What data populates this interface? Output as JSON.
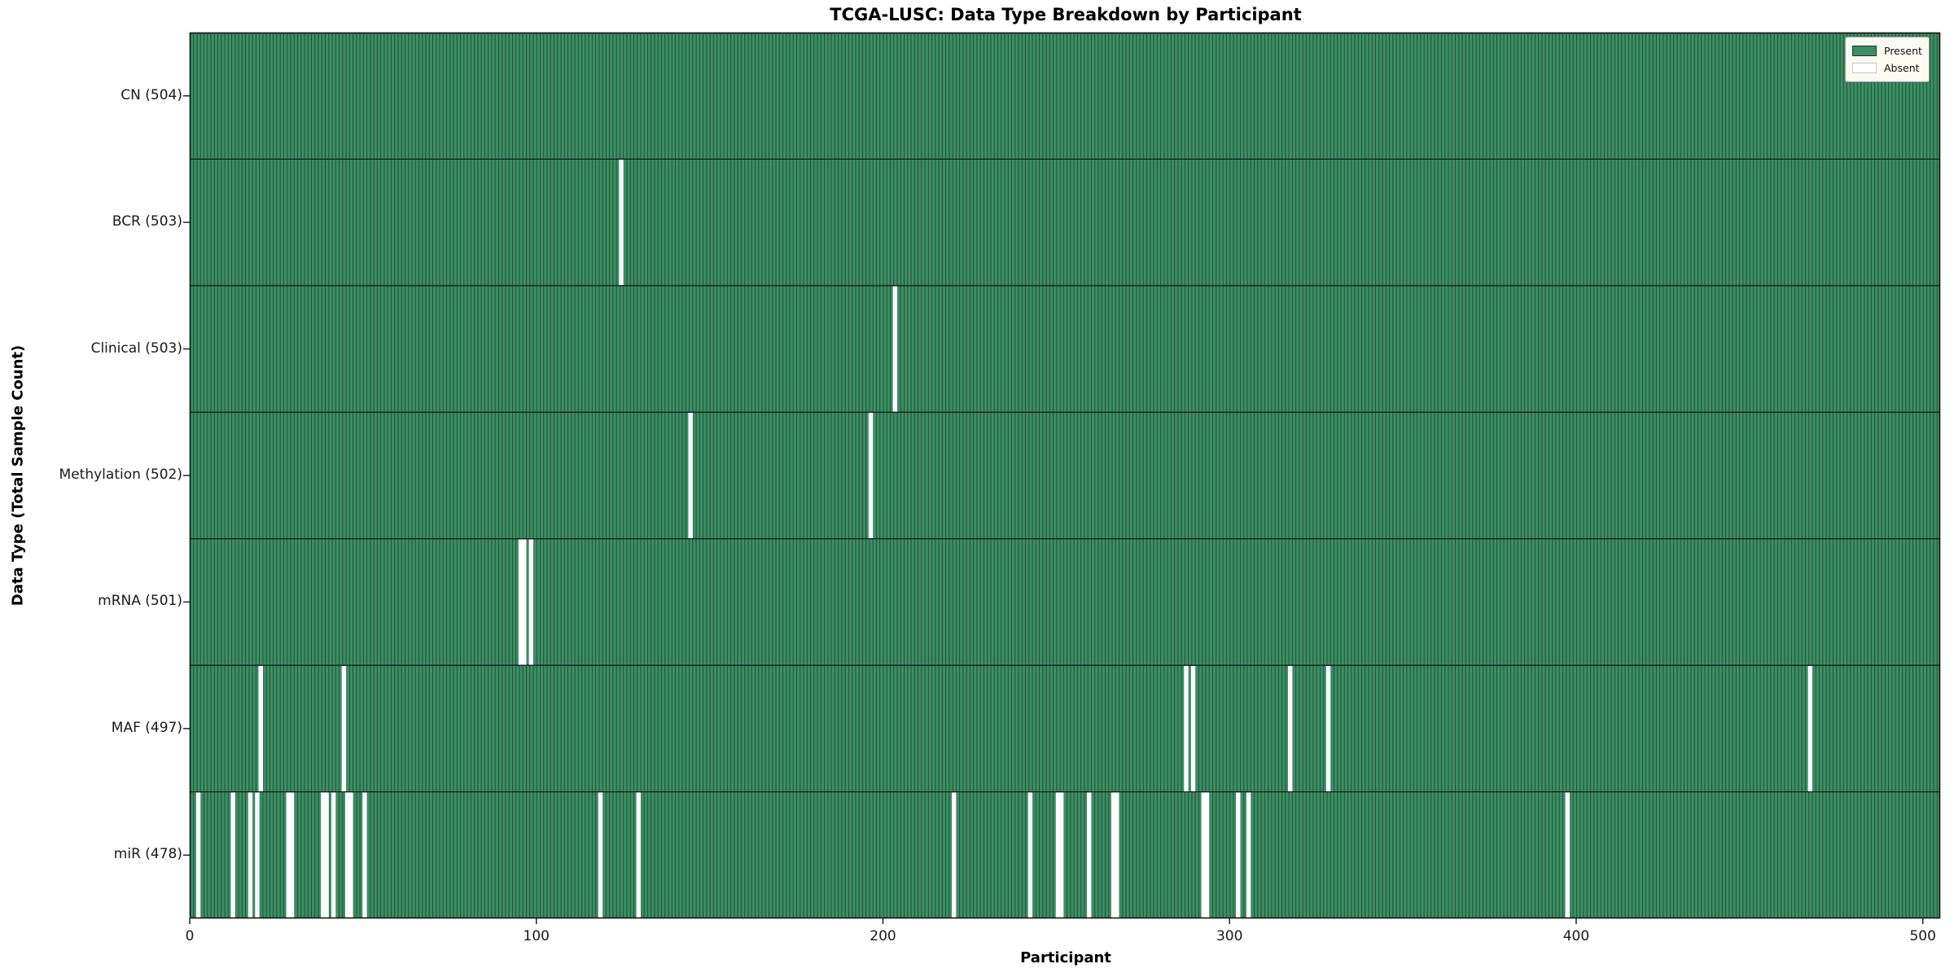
{
  "chart_data": {
    "type": "heatmap",
    "title": "TCGA-LUSC: Data Type Breakdown by Participant",
    "xlabel": "Participant",
    "ylabel": "Data Type (Total Sample Count)",
    "x_ticks": [
      0,
      100,
      200,
      300,
      400,
      500
    ],
    "xlim": [
      0,
      505
    ],
    "n_participants": 504,
    "grid": false,
    "legend_position": "upper right",
    "legend": [
      {
        "label": "Present",
        "color": "#2e8b57"
      },
      {
        "label": "Absent",
        "color": "#ffffff"
      }
    ],
    "rows": [
      {
        "label": "CN (504)",
        "data_type": "CN",
        "total": 504,
        "absent_participants": []
      },
      {
        "label": "BCR (503)",
        "data_type": "BCR",
        "total": 503,
        "absent_participants": [
          124
        ]
      },
      {
        "label": "Clinical (503)",
        "data_type": "Clinical",
        "total": 503,
        "absent_participants": [
          203
        ]
      },
      {
        "label": "Methylation (502)",
        "data_type": "Methylation",
        "total": 502,
        "absent_participants": [
          144,
          196
        ]
      },
      {
        "label": "mRNA (501)",
        "data_type": "mRNA",
        "total": 501,
        "absent_participants": [
          95,
          96,
          98
        ]
      },
      {
        "label": "MAF (497)",
        "data_type": "MAF",
        "total": 497,
        "absent_participants": [
          20,
          44,
          287,
          289,
          317,
          328,
          467
        ]
      },
      {
        "label": "miR (478)",
        "data_type": "miR",
        "total": 478,
        "absent_participants": [
          2,
          12,
          17,
          19,
          28,
          29,
          38,
          39,
          41,
          45,
          46,
          50,
          118,
          129,
          220,
          242,
          250,
          251,
          259,
          266,
          267,
          292,
          293,
          302,
          305,
          397
        ]
      }
    ],
    "colors": {
      "present": "#3a8f62",
      "bar_edge": "#15372500",
      "bar_edge_line": "#1b3b2a",
      "absent": "#ffffff",
      "separator": "#141414",
      "spine": "#141414"
    }
  }
}
